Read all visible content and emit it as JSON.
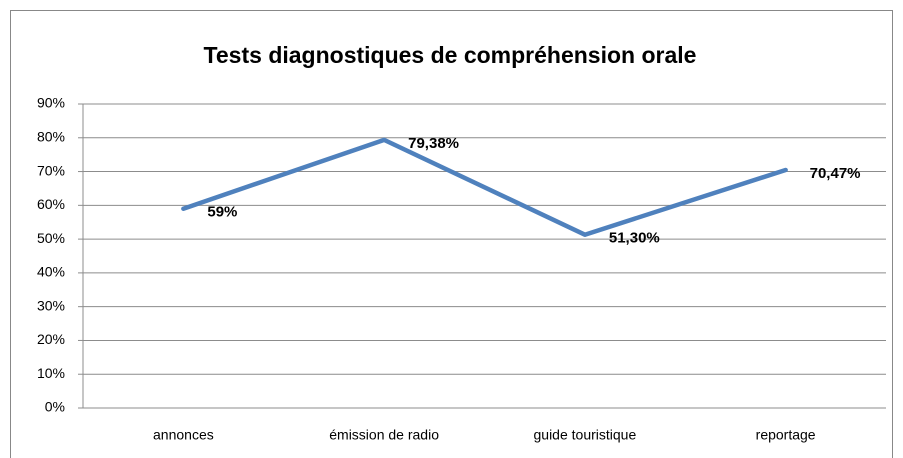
{
  "chart_data": {
    "type": "line",
    "title": "Tests diagnostiques de compréhension orale",
    "categories": [
      "annonces",
      "émission de radio",
      "guide touristique",
      "reportage"
    ],
    "series": [
      {
        "name": null,
        "color": "#4f81bd",
        "values": [
          59,
          79.38,
          51.3,
          70.47
        ],
        "value_labels": [
          "59%",
          "79,38%",
          "51,30%",
          "70,47%"
        ]
      }
    ],
    "ylim": [
      0,
      90
    ],
    "yticks": [
      {
        "value": 0,
        "label": "0%"
      },
      {
        "value": 10,
        "label": "10%"
      },
      {
        "value": 20,
        "label": "20%"
      },
      {
        "value": 30,
        "label": "30%"
      },
      {
        "value": 40,
        "label": "40%"
      },
      {
        "value": 50,
        "label": "50%"
      },
      {
        "value": 60,
        "label": "60%"
      },
      {
        "value": 70,
        "label": "70%"
      },
      {
        "value": 80,
        "label": "80%"
      },
      {
        "value": 90,
        "label": "90%"
      }
    ],
    "grid": true,
    "legend": false
  }
}
